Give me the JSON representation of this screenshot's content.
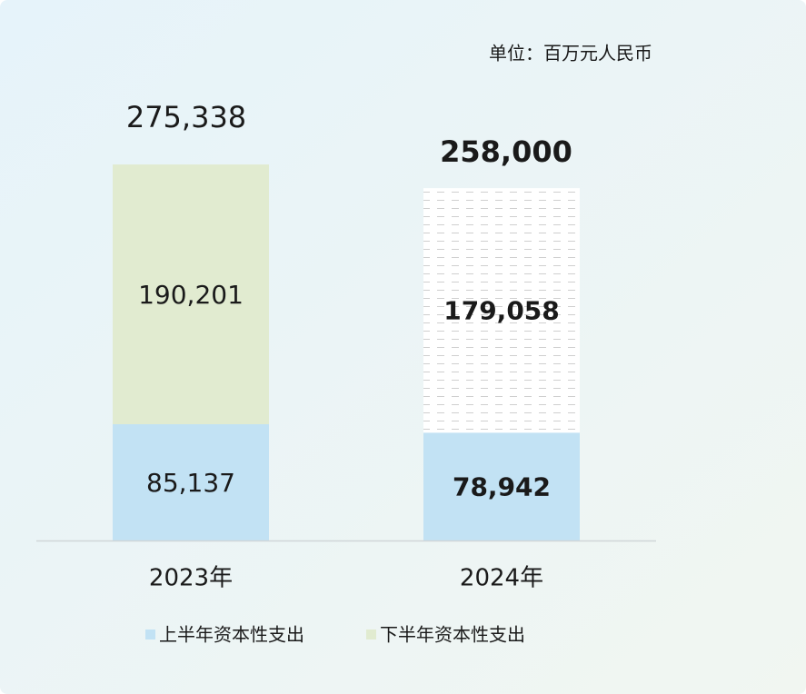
{
  "chart_data": {
    "type": "stacked_bar",
    "unit": "单位：百万元人民币",
    "categories": [
      "2023年",
      "2024年"
    ],
    "series": [
      {
        "name": "上半年资本性支出",
        "color": "#c2e2f4",
        "values": [
          85137,
          78942
        ],
        "value_labels": [
          "85,137",
          "78,942"
        ]
      },
      {
        "name": "下半年资本性支出",
        "color": "#e1ebd0",
        "values": [
          190201,
          179058
        ],
        "value_labels": [
          "190,201",
          "179,058"
        ]
      }
    ],
    "totals": [
      275338,
      258000
    ],
    "totals_labels": [
      "275,338",
      "258,000"
    ],
    "estimate": [
      false,
      true
    ],
    "ylim": [
      0,
      300000
    ]
  }
}
